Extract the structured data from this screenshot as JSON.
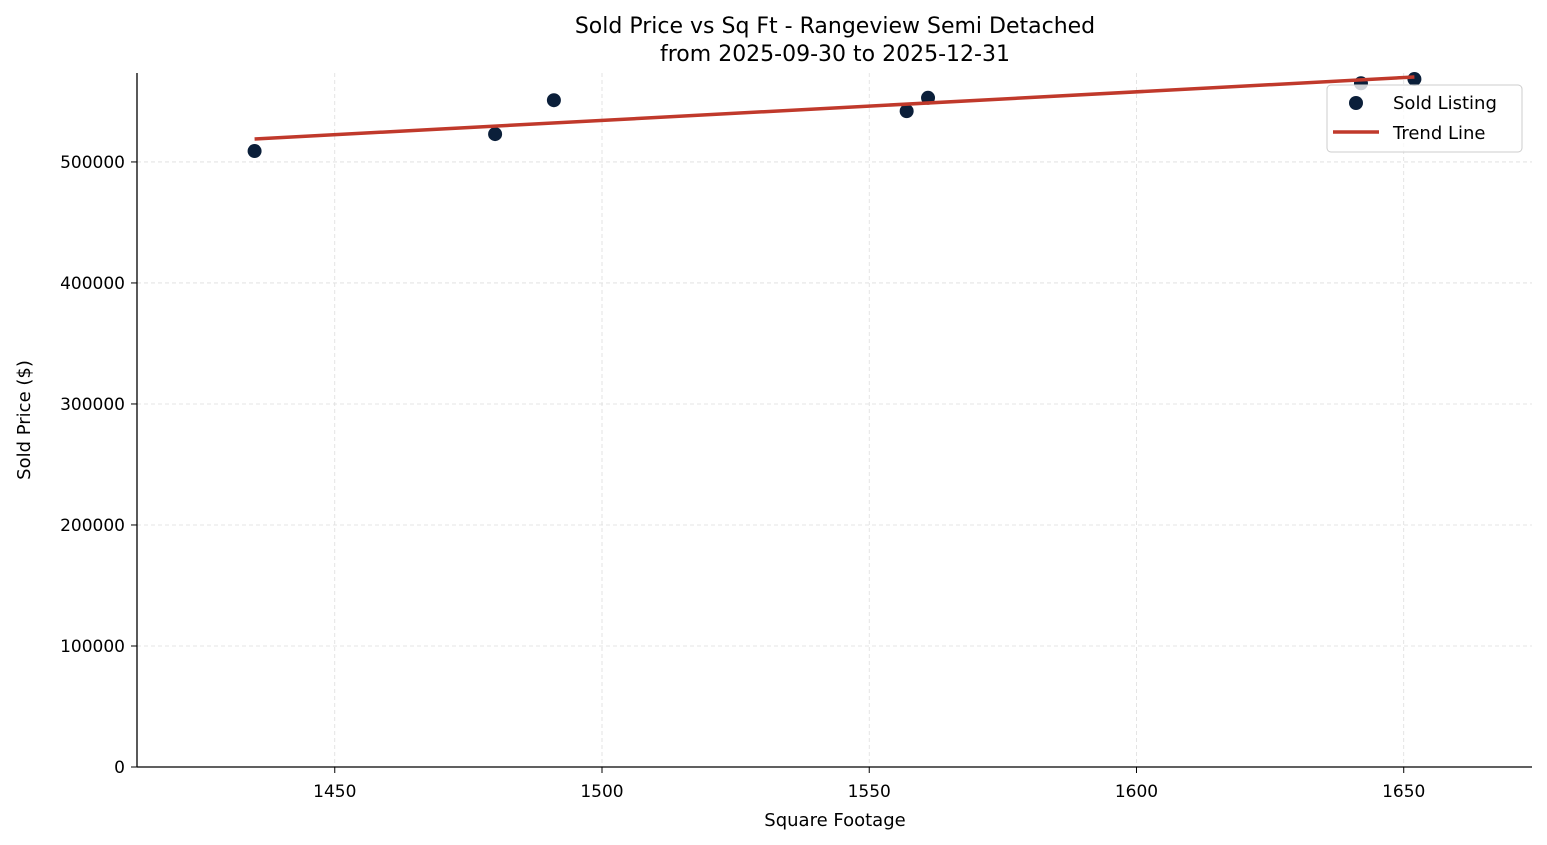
{
  "chart_data": {
    "type": "scatter",
    "title": "Sold Price vs Sq Ft - Rangeview Semi Detached",
    "subtitle": "from 2025-09-30 to 2025-12-31",
    "xlabel": "Square Footage",
    "ylabel": "Sold Price ($)",
    "xlim": [
      1413,
      1674
    ],
    "ylim": [
      0,
      573500
    ],
    "xticks": [
      1450,
      1500,
      1550,
      1600,
      1650
    ],
    "yticks": [
      0,
      100000,
      200000,
      300000,
      400000,
      500000
    ],
    "grid": true,
    "legend_position": "top-right",
    "series": [
      {
        "name": "Sold Listing",
        "kind": "scatter",
        "color": "#0b1f3a",
        "points": [
          {
            "x": 1435,
            "y": 509000
          },
          {
            "x": 1480,
            "y": 523000
          },
          {
            "x": 1491,
            "y": 551000
          },
          {
            "x": 1557,
            "y": 542000
          },
          {
            "x": 1561,
            "y": 553000
          },
          {
            "x": 1642,
            "y": 565000
          },
          {
            "x": 1652,
            "y": 568500
          }
        ]
      },
      {
        "name": "Trend Line",
        "kind": "line",
        "color": "#c0392b",
        "points": [
          {
            "x": 1435,
            "y": 519000
          },
          {
            "x": 1652,
            "y": 570200
          }
        ]
      }
    ]
  }
}
